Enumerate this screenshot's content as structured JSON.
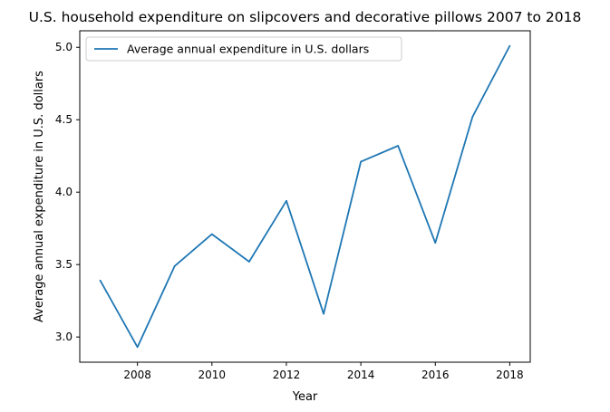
{
  "chart_data": {
    "type": "line",
    "title": "U.S. household expenditure on slipcovers and decorative pillows 2007 to 2018",
    "xlabel": "Year",
    "ylabel": "Average annual expenditure in U.S. dollars",
    "x": [
      2007,
      2008,
      2009,
      2010,
      2011,
      2012,
      2013,
      2014,
      2015,
      2016,
      2017,
      2018
    ],
    "series": [
      {
        "name": "Average annual expenditure in U.S. dollars",
        "color": "#1f77b4",
        "values": [
          3.39,
          2.93,
          3.49,
          3.71,
          3.52,
          3.94,
          3.16,
          4.21,
          4.32,
          3.65,
          4.52,
          5.01
        ]
      }
    ],
    "xlim": [
      2006.45,
      2018.55
    ],
    "ylim": [
      2.826,
      5.114
    ],
    "xticks": [
      2008,
      2010,
      2012,
      2014,
      2016,
      2018
    ],
    "xtick_labels": [
      "2008",
      "2010",
      "2012",
      "2014",
      "2016",
      "2018"
    ],
    "yticks": [
      3.0,
      3.5,
      4.0,
      4.5,
      5.0
    ],
    "ytick_labels": [
      "3.0",
      "3.5",
      "4.0",
      "4.5",
      "5.0"
    ],
    "grid": false,
    "legend_position": "upper-left"
  }
}
